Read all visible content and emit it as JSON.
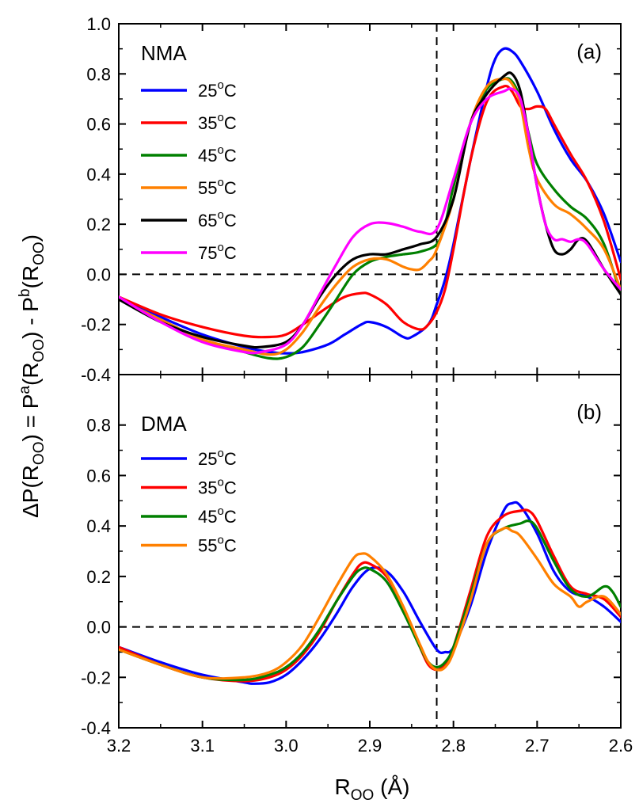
{
  "figure": {
    "ylabel_parts": [
      "ΔP(R",
      "OO",
      ") = P",
      "a",
      "(R",
      "OO",
      ") - P",
      "b",
      "(R",
      "OO",
      ")"
    ],
    "xlabel_parts": [
      "R",
      "OO",
      " (Å)"
    ]
  },
  "chart_data": [
    {
      "type": "line",
      "panel": "(a)",
      "sample": "NMA",
      "xlim": [
        3.2,
        2.6
      ],
      "x_reversed": true,
      "ylim": [
        -0.4,
        1.0
      ],
      "yticks": [
        "1.0",
        "0.8",
        "0.6",
        "0.4",
        "0.2",
        "0.0",
        "-0.2",
        "-0.4"
      ],
      "ytick_values": [
        1.0,
        0.8,
        0.6,
        0.4,
        0.2,
        0.0,
        -0.2,
        -0.4
      ],
      "xticks": [],
      "reference_lines": {
        "vertical_x": 2.82,
        "horizontal_y": 0.0
      },
      "legend_position": "upper-left",
      "series": [
        {
          "name": "25°C",
          "name_base": "25",
          "name_sup": "o",
          "name_tail": "C",
          "color": "#0000ff",
          "x": [
            3.2,
            3.15,
            3.1,
            3.05,
            3.02,
            3.0,
            2.98,
            2.95,
            2.93,
            2.91,
            2.9,
            2.88,
            2.86,
            2.85,
            2.83,
            2.82,
            2.81,
            2.8,
            2.78,
            2.76,
            2.75,
            2.74,
            2.73,
            2.72,
            2.7,
            2.68,
            2.66,
            2.64,
            2.62,
            2.6
          ],
          "y": [
            -0.09,
            -0.17,
            -0.24,
            -0.29,
            -0.31,
            -0.315,
            -0.31,
            -0.28,
            -0.24,
            -0.2,
            -0.19,
            -0.21,
            -0.25,
            -0.25,
            -0.2,
            -0.12,
            -0.02,
            0.12,
            0.45,
            0.75,
            0.86,
            0.9,
            0.89,
            0.85,
            0.73,
            0.58,
            0.46,
            0.37,
            0.24,
            0.05
          ]
        },
        {
          "name": "35°C",
          "name_base": "35",
          "name_sup": "o",
          "name_tail": "C",
          "color": "#ff0000",
          "x": [
            3.2,
            3.15,
            3.1,
            3.05,
            3.02,
            3.0,
            2.98,
            2.95,
            2.93,
            2.91,
            2.9,
            2.88,
            2.86,
            2.84,
            2.83,
            2.82,
            2.81,
            2.8,
            2.78,
            2.76,
            2.74,
            2.73,
            2.72,
            2.71,
            2.7,
            2.69,
            2.68,
            2.66,
            2.64,
            2.62,
            2.6
          ],
          "y": [
            -0.09,
            -0.16,
            -0.21,
            -0.245,
            -0.25,
            -0.24,
            -0.2,
            -0.13,
            -0.09,
            -0.075,
            -0.08,
            -0.12,
            -0.19,
            -0.22,
            -0.2,
            -0.15,
            -0.06,
            0.1,
            0.45,
            0.69,
            0.75,
            0.73,
            0.67,
            0.66,
            0.67,
            0.66,
            0.6,
            0.48,
            0.37,
            0.21,
            -0.02
          ]
        },
        {
          "name": "45°C",
          "name_base": "45",
          "name_sup": "o",
          "name_tail": "C",
          "color": "#008000",
          "x": [
            3.2,
            3.15,
            3.1,
            3.05,
            3.02,
            3.0,
            2.98,
            2.96,
            2.94,
            2.92,
            2.9,
            2.88,
            2.86,
            2.84,
            2.82,
            2.81,
            2.8,
            2.78,
            2.76,
            2.74,
            2.73,
            2.72,
            2.71,
            2.7,
            2.68,
            2.66,
            2.64,
            2.62,
            2.6
          ],
          "y": [
            -0.1,
            -0.18,
            -0.26,
            -0.31,
            -0.335,
            -0.33,
            -0.29,
            -0.2,
            -0.1,
            0.0,
            0.05,
            0.07,
            0.08,
            0.09,
            0.12,
            0.2,
            0.35,
            0.6,
            0.74,
            0.78,
            0.77,
            0.7,
            0.56,
            0.44,
            0.34,
            0.27,
            0.22,
            0.12,
            -0.08
          ]
        },
        {
          "name": "55°C",
          "name_base": "55",
          "name_sup": "o",
          "name_tail": "C",
          "color": "#ff8000",
          "x": [
            3.2,
            3.15,
            3.1,
            3.05,
            3.02,
            3.0,
            2.98,
            2.96,
            2.94,
            2.92,
            2.9,
            2.88,
            2.86,
            2.85,
            2.84,
            2.83,
            2.82,
            2.8,
            2.78,
            2.76,
            2.74,
            2.73,
            2.72,
            2.71,
            2.7,
            2.68,
            2.66,
            2.64,
            2.62,
            2.6
          ],
          "y": [
            -0.1,
            -0.18,
            -0.26,
            -0.3,
            -0.32,
            -0.3,
            -0.23,
            -0.13,
            -0.04,
            0.03,
            0.06,
            0.06,
            0.03,
            0.02,
            0.02,
            0.05,
            0.1,
            0.3,
            0.6,
            0.75,
            0.78,
            0.76,
            0.68,
            0.5,
            0.38,
            0.28,
            0.24,
            0.18,
            0.1,
            -0.06
          ]
        },
        {
          "name": "65°C",
          "name_base": "65",
          "name_sup": "o",
          "name_tail": "C",
          "color": "#000000",
          "x": [
            3.2,
            3.15,
            3.1,
            3.05,
            3.03,
            3.0,
            2.98,
            2.96,
            2.94,
            2.92,
            2.9,
            2.88,
            2.86,
            2.84,
            2.82,
            2.8,
            2.78,
            2.76,
            2.74,
            2.73,
            2.72,
            2.71,
            2.7,
            2.69,
            2.68,
            2.67,
            2.66,
            2.65,
            2.64,
            2.62,
            2.6
          ],
          "y": [
            -0.1,
            -0.19,
            -0.25,
            -0.285,
            -0.29,
            -0.27,
            -0.2,
            -0.09,
            0.0,
            0.06,
            0.08,
            0.08,
            0.1,
            0.12,
            0.15,
            0.3,
            0.6,
            0.72,
            0.79,
            0.8,
            0.73,
            0.55,
            0.35,
            0.2,
            0.1,
            0.08,
            0.1,
            0.14,
            0.13,
            0.02,
            -0.08
          ]
        },
        {
          "name": "75°C",
          "name_base": "75",
          "name_sup": "o",
          "name_tail": "C",
          "color": "#ff00ff",
          "x": [
            3.2,
            3.15,
            3.1,
            3.05,
            3.03,
            3.0,
            2.98,
            2.96,
            2.94,
            2.92,
            2.9,
            2.88,
            2.86,
            2.84,
            2.82,
            2.8,
            2.78,
            2.76,
            2.74,
            2.73,
            2.72,
            2.71,
            2.7,
            2.69,
            2.68,
            2.67,
            2.66,
            2.65,
            2.64,
            2.62,
            2.6
          ],
          "y": [
            -0.09,
            -0.19,
            -0.27,
            -0.31,
            -0.31,
            -0.28,
            -0.2,
            -0.08,
            0.04,
            0.15,
            0.2,
            0.205,
            0.19,
            0.17,
            0.18,
            0.38,
            0.6,
            0.7,
            0.73,
            0.74,
            0.7,
            0.55,
            0.35,
            0.2,
            0.14,
            0.14,
            0.13,
            0.14,
            0.12,
            0.02,
            -0.06
          ]
        }
      ]
    },
    {
      "type": "line",
      "panel": "(b)",
      "sample": "DMA",
      "xlim": [
        3.2,
        2.6
      ],
      "x_reversed": true,
      "ylim": [
        -0.4,
        1.0
      ],
      "yticks": [
        "0.8",
        "0.6",
        "0.4",
        "0.2",
        "0.0",
        "-0.2",
        "-0.4"
      ],
      "ytick_values": [
        0.8,
        0.6,
        0.4,
        0.2,
        0.0,
        -0.2,
        -0.4
      ],
      "xticks": [
        "3.2",
        "3.1",
        "3.0",
        "2.9",
        "2.8",
        "2.7",
        "2.6"
      ],
      "xtick_values": [
        3.2,
        3.1,
        3.0,
        2.9,
        2.8,
        2.7,
        2.6
      ],
      "reference_lines": {
        "vertical_x": 2.82,
        "horizontal_y": 0.0
      },
      "legend_position": "middle-left",
      "series": [
        {
          "name": "25°C",
          "name_base": "25",
          "name_sup": "o",
          "name_tail": "C",
          "color": "#0000ff",
          "x": [
            3.2,
            3.15,
            3.1,
            3.05,
            3.04,
            3.02,
            3.0,
            2.98,
            2.96,
            2.94,
            2.92,
            2.9,
            2.88,
            2.86,
            2.84,
            2.82,
            2.81,
            2.8,
            2.78,
            2.76,
            2.74,
            2.73,
            2.72,
            2.7,
            2.68,
            2.66,
            2.64,
            2.62,
            2.6
          ],
          "y": [
            -0.08,
            -0.14,
            -0.19,
            -0.22,
            -0.225,
            -0.22,
            -0.19,
            -0.13,
            -0.05,
            0.05,
            0.16,
            0.23,
            0.22,
            0.14,
            0.02,
            -0.09,
            -0.1,
            -0.08,
            0.08,
            0.3,
            0.46,
            0.49,
            0.48,
            0.37,
            0.22,
            0.14,
            0.12,
            0.08,
            0.02
          ]
        },
        {
          "name": "35°C",
          "name_base": "35",
          "name_sup": "o",
          "name_tail": "C",
          "color": "#ff0000",
          "x": [
            3.2,
            3.15,
            3.1,
            3.05,
            3.02,
            3.0,
            2.98,
            2.96,
            2.94,
            2.92,
            2.91,
            2.9,
            2.88,
            2.86,
            2.84,
            2.83,
            2.82,
            2.81,
            2.8,
            2.78,
            2.76,
            2.74,
            2.72,
            2.71,
            2.7,
            2.68,
            2.66,
            2.64,
            2.62,
            2.6
          ],
          "y": [
            -0.08,
            -0.15,
            -0.2,
            -0.215,
            -0.2,
            -0.17,
            -0.11,
            -0.02,
            0.1,
            0.21,
            0.25,
            0.25,
            0.2,
            0.08,
            -0.08,
            -0.15,
            -0.17,
            -0.15,
            -0.08,
            0.14,
            0.36,
            0.44,
            0.46,
            0.46,
            0.42,
            0.28,
            0.16,
            0.13,
            0.11,
            0.04
          ]
        },
        {
          "name": "45°C",
          "name_base": "45",
          "name_sup": "o",
          "name_tail": "C",
          "color": "#008000",
          "x": [
            3.2,
            3.15,
            3.1,
            3.05,
            3.02,
            3.0,
            2.98,
            2.96,
            2.94,
            2.92,
            2.91,
            2.9,
            2.88,
            2.86,
            2.84,
            2.83,
            2.82,
            2.81,
            2.8,
            2.78,
            2.76,
            2.74,
            2.72,
            2.71,
            2.7,
            2.68,
            2.66,
            2.64,
            2.62,
            2.61,
            2.6
          ],
          "y": [
            -0.09,
            -0.15,
            -0.2,
            -0.21,
            -0.19,
            -0.16,
            -0.1,
            -0.01,
            0.1,
            0.2,
            0.23,
            0.23,
            0.18,
            0.06,
            -0.08,
            -0.14,
            -0.16,
            -0.14,
            -0.08,
            0.12,
            0.33,
            0.39,
            0.41,
            0.42,
            0.39,
            0.26,
            0.15,
            0.12,
            0.16,
            0.14,
            0.08
          ]
        },
        {
          "name": "55°C",
          "name_base": "55",
          "name_sup": "o",
          "name_tail": "C",
          "color": "#ff8000",
          "x": [
            3.2,
            3.15,
            3.1,
            3.05,
            3.02,
            3.0,
            2.98,
            2.96,
            2.94,
            2.92,
            2.91,
            2.9,
            2.88,
            2.86,
            2.84,
            2.83,
            2.82,
            2.81,
            2.8,
            2.78,
            2.76,
            2.74,
            2.73,
            2.72,
            2.7,
            2.68,
            2.66,
            2.65,
            2.64,
            2.62,
            2.6
          ],
          "y": [
            -0.09,
            -0.15,
            -0.2,
            -0.2,
            -0.18,
            -0.14,
            -0.07,
            0.04,
            0.16,
            0.27,
            0.29,
            0.28,
            0.21,
            0.08,
            -0.07,
            -0.14,
            -0.17,
            -0.16,
            -0.1,
            0.1,
            0.33,
            0.39,
            0.38,
            0.36,
            0.27,
            0.17,
            0.12,
            0.08,
            0.1,
            0.12,
            0.05
          ]
        }
      ]
    }
  ]
}
